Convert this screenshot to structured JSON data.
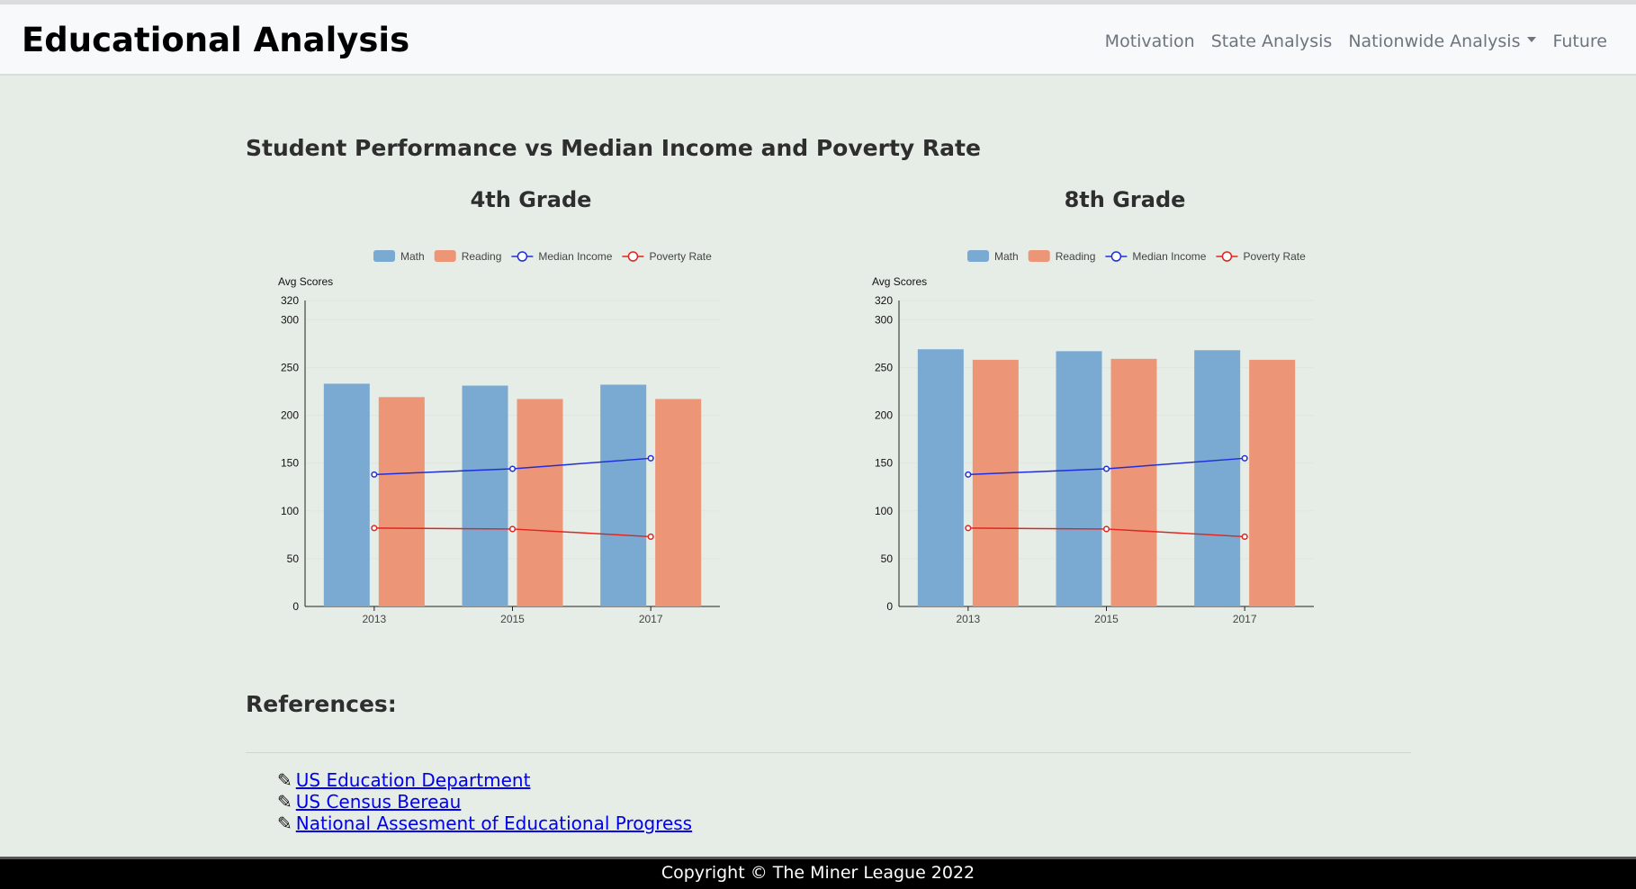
{
  "navbar": {
    "brand": "Educational Analysis",
    "links": [
      "Motivation",
      "State Analysis",
      "Nationwide Analysis",
      "Future"
    ]
  },
  "page_title": "Student Performance vs Median Income and Poverty Rate",
  "colors": {
    "math": "#7aaad2",
    "reading": "#ec9677",
    "median_income": "#1f2edd",
    "poverty_rate": "#e0251f"
  },
  "chart_data": [
    {
      "type": "bar",
      "title": "4th Grade",
      "ylabel": "Avg Scores",
      "xlabel": "",
      "categories": [
        "2013",
        "2015",
        "2017"
      ],
      "ylim": [
        0,
        320
      ],
      "yticks": [
        0,
        50,
        100,
        150,
        200,
        250,
        300,
        320
      ],
      "legend_position": "top",
      "series": [
        {
          "name": "Math",
          "type": "bar",
          "values": [
            233,
            231,
            232
          ]
        },
        {
          "name": "Reading",
          "type": "bar",
          "values": [
            219,
            217,
            217
          ]
        },
        {
          "name": "Median Income",
          "type": "line",
          "values": [
            138,
            144,
            155
          ]
        },
        {
          "name": "Poverty Rate",
          "type": "line",
          "values": [
            82,
            81,
            73
          ]
        }
      ]
    },
    {
      "type": "bar",
      "title": "8th Grade",
      "ylabel": "Avg Scores",
      "xlabel": "",
      "categories": [
        "2013",
        "2015",
        "2017"
      ],
      "ylim": [
        0,
        320
      ],
      "yticks": [
        0,
        50,
        100,
        150,
        200,
        250,
        300,
        320
      ],
      "legend_position": "top",
      "series": [
        {
          "name": "Math",
          "type": "bar",
          "values": [
            269,
            267,
            268
          ]
        },
        {
          "name": "Reading",
          "type": "bar",
          "values": [
            258,
            259,
            258
          ]
        },
        {
          "name": "Median Income",
          "type": "line",
          "values": [
            138,
            144,
            155
          ]
        },
        {
          "name": "Poverty Rate",
          "type": "line",
          "values": [
            82,
            81,
            73
          ]
        }
      ]
    }
  ],
  "references": {
    "title": "References:",
    "items": [
      "US Education Department",
      "US Census Bereau",
      "National Assesment of Educational Progress"
    ]
  },
  "footer": "Copyright © The Miner League 2022"
}
